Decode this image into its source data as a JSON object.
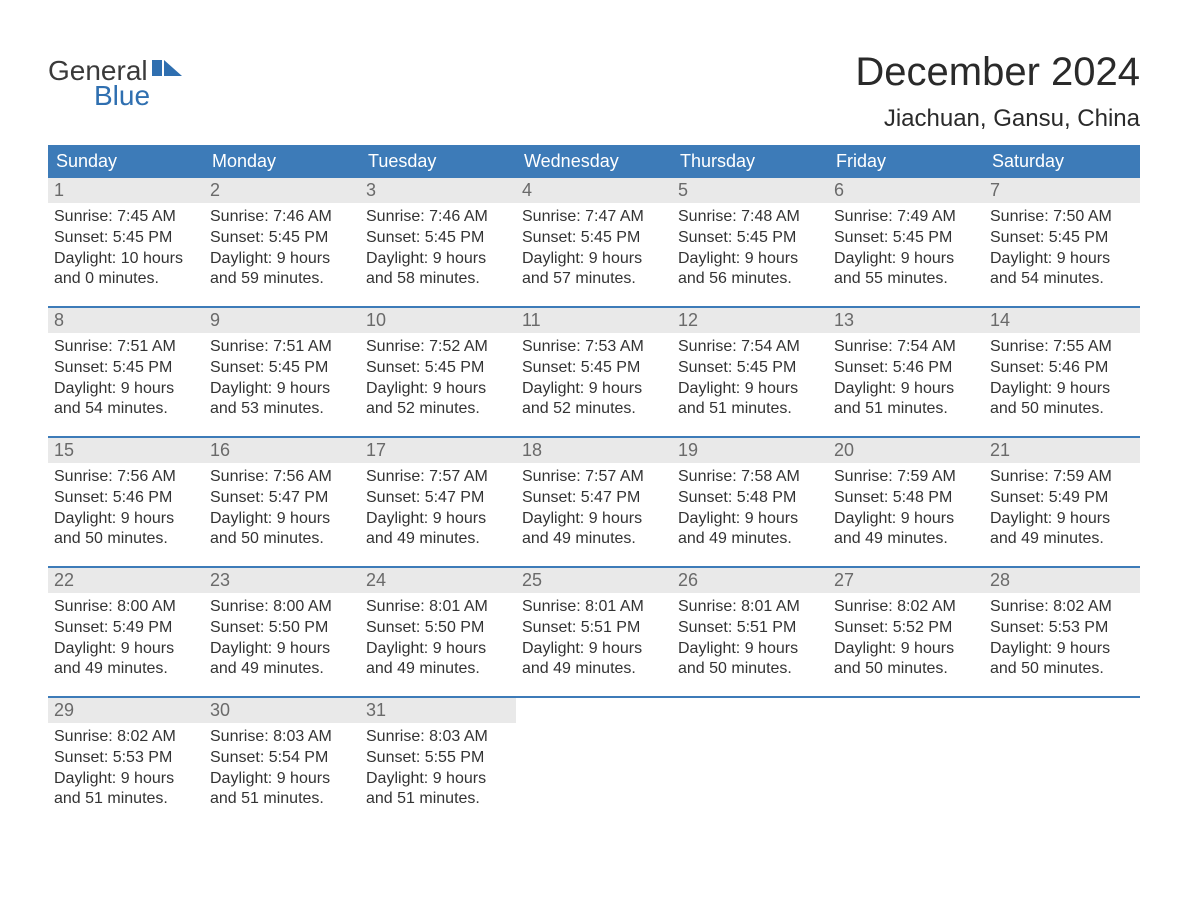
{
  "logo": {
    "word1": "General",
    "word2": "Blue"
  },
  "title": "December 2024",
  "location": "Jiachuan, Gansu, China",
  "header_color": "#3d7bb8",
  "daynum_bg": "#e9e9e9",
  "text_color": "#333333",
  "weekdays": [
    "Sunday",
    "Monday",
    "Tuesday",
    "Wednesday",
    "Thursday",
    "Friday",
    "Saturday"
  ],
  "weeks": [
    [
      {
        "n": "1",
        "sunrise": "7:45 AM",
        "sunset": "5:45 PM",
        "dl1": "10 hours",
        "dl2": "and 0 minutes."
      },
      {
        "n": "2",
        "sunrise": "7:46 AM",
        "sunset": "5:45 PM",
        "dl1": "9 hours",
        "dl2": "and 59 minutes."
      },
      {
        "n": "3",
        "sunrise": "7:46 AM",
        "sunset": "5:45 PM",
        "dl1": "9 hours",
        "dl2": "and 58 minutes."
      },
      {
        "n": "4",
        "sunrise": "7:47 AM",
        "sunset": "5:45 PM",
        "dl1": "9 hours",
        "dl2": "and 57 minutes."
      },
      {
        "n": "5",
        "sunrise": "7:48 AM",
        "sunset": "5:45 PM",
        "dl1": "9 hours",
        "dl2": "and 56 minutes."
      },
      {
        "n": "6",
        "sunrise": "7:49 AM",
        "sunset": "5:45 PM",
        "dl1": "9 hours",
        "dl2": "and 55 minutes."
      },
      {
        "n": "7",
        "sunrise": "7:50 AM",
        "sunset": "5:45 PM",
        "dl1": "9 hours",
        "dl2": "and 54 minutes."
      }
    ],
    [
      {
        "n": "8",
        "sunrise": "7:51 AM",
        "sunset": "5:45 PM",
        "dl1": "9 hours",
        "dl2": "and 54 minutes."
      },
      {
        "n": "9",
        "sunrise": "7:51 AM",
        "sunset": "5:45 PM",
        "dl1": "9 hours",
        "dl2": "and 53 minutes."
      },
      {
        "n": "10",
        "sunrise": "7:52 AM",
        "sunset": "5:45 PM",
        "dl1": "9 hours",
        "dl2": "and 52 minutes."
      },
      {
        "n": "11",
        "sunrise": "7:53 AM",
        "sunset": "5:45 PM",
        "dl1": "9 hours",
        "dl2": "and 52 minutes."
      },
      {
        "n": "12",
        "sunrise": "7:54 AM",
        "sunset": "5:45 PM",
        "dl1": "9 hours",
        "dl2": "and 51 minutes."
      },
      {
        "n": "13",
        "sunrise": "7:54 AM",
        "sunset": "5:46 PM",
        "dl1": "9 hours",
        "dl2": "and 51 minutes."
      },
      {
        "n": "14",
        "sunrise": "7:55 AM",
        "sunset": "5:46 PM",
        "dl1": "9 hours",
        "dl2": "and 50 minutes."
      }
    ],
    [
      {
        "n": "15",
        "sunrise": "7:56 AM",
        "sunset": "5:46 PM",
        "dl1": "9 hours",
        "dl2": "and 50 minutes."
      },
      {
        "n": "16",
        "sunrise": "7:56 AM",
        "sunset": "5:47 PM",
        "dl1": "9 hours",
        "dl2": "and 50 minutes."
      },
      {
        "n": "17",
        "sunrise": "7:57 AM",
        "sunset": "5:47 PM",
        "dl1": "9 hours",
        "dl2": "and 49 minutes."
      },
      {
        "n": "18",
        "sunrise": "7:57 AM",
        "sunset": "5:47 PM",
        "dl1": "9 hours",
        "dl2": "and 49 minutes."
      },
      {
        "n": "19",
        "sunrise": "7:58 AM",
        "sunset": "5:48 PM",
        "dl1": "9 hours",
        "dl2": "and 49 minutes."
      },
      {
        "n": "20",
        "sunrise": "7:59 AM",
        "sunset": "5:48 PM",
        "dl1": "9 hours",
        "dl2": "and 49 minutes."
      },
      {
        "n": "21",
        "sunrise": "7:59 AM",
        "sunset": "5:49 PM",
        "dl1": "9 hours",
        "dl2": "and 49 minutes."
      }
    ],
    [
      {
        "n": "22",
        "sunrise": "8:00 AM",
        "sunset": "5:49 PM",
        "dl1": "9 hours",
        "dl2": "and 49 minutes."
      },
      {
        "n": "23",
        "sunrise": "8:00 AM",
        "sunset": "5:50 PM",
        "dl1": "9 hours",
        "dl2": "and 49 minutes."
      },
      {
        "n": "24",
        "sunrise": "8:01 AM",
        "sunset": "5:50 PM",
        "dl1": "9 hours",
        "dl2": "and 49 minutes."
      },
      {
        "n": "25",
        "sunrise": "8:01 AM",
        "sunset": "5:51 PM",
        "dl1": "9 hours",
        "dl2": "and 49 minutes."
      },
      {
        "n": "26",
        "sunrise": "8:01 AM",
        "sunset": "5:51 PM",
        "dl1": "9 hours",
        "dl2": "and 50 minutes."
      },
      {
        "n": "27",
        "sunrise": "8:02 AM",
        "sunset": "5:52 PM",
        "dl1": "9 hours",
        "dl2": "and 50 minutes."
      },
      {
        "n": "28",
        "sunrise": "8:02 AM",
        "sunset": "5:53 PM",
        "dl1": "9 hours",
        "dl2": "and 50 minutes."
      }
    ],
    [
      {
        "n": "29",
        "sunrise": "8:02 AM",
        "sunset": "5:53 PM",
        "dl1": "9 hours",
        "dl2": "and 51 minutes."
      },
      {
        "n": "30",
        "sunrise": "8:03 AM",
        "sunset": "5:54 PM",
        "dl1": "9 hours",
        "dl2": "and 51 minutes."
      },
      {
        "n": "31",
        "sunrise": "8:03 AM",
        "sunset": "5:55 PM",
        "dl1": "9 hours",
        "dl2": "and 51 minutes."
      },
      null,
      null,
      null,
      null
    ]
  ],
  "labels": {
    "sunrise": "Sunrise: ",
    "sunset": "Sunset: ",
    "daylight": "Daylight: "
  }
}
